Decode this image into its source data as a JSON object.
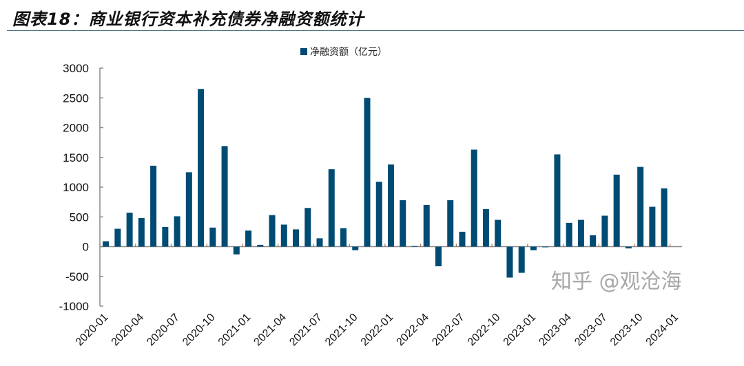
{
  "header": {
    "title": "图表18：商业银行资本补充债券净融资额统计"
  },
  "watermark": "知乎 @观沧海",
  "chart_data": {
    "type": "bar",
    "title": "",
    "xlabel": "",
    "ylabel": "",
    "ylim": [
      -1000,
      3000
    ],
    "yticks": [
      -1000,
      -500,
      0,
      500,
      1000,
      1500,
      2000,
      2500,
      3000
    ],
    "grid": false,
    "legend_position": "top-center",
    "bar_color": "#004b73",
    "categories": [
      "2020-01",
      "2020-02",
      "2020-03",
      "2020-04",
      "2020-05",
      "2020-06",
      "2020-07",
      "2020-08",
      "2020-09",
      "2020-10",
      "2020-11",
      "2020-12",
      "2021-01",
      "2021-02",
      "2021-03",
      "2021-04",
      "2021-05",
      "2021-06",
      "2021-07",
      "2021-08",
      "2021-09",
      "2021-10",
      "2021-11",
      "2021-12",
      "2022-01",
      "2022-02",
      "2022-03",
      "2022-04",
      "2022-05",
      "2022-06",
      "2022-07",
      "2022-08",
      "2022-09",
      "2022-10",
      "2022-11",
      "2022-12",
      "2023-01",
      "2023-02",
      "2023-03",
      "2023-04",
      "2023-05",
      "2023-06",
      "2023-07",
      "2023-08",
      "2023-09",
      "2023-10",
      "2023-11",
      "2023-12",
      "2024-01"
    ],
    "tick_labels": [
      "2020-01",
      "2020-04",
      "2020-07",
      "2020-10",
      "2021-01",
      "2021-04",
      "2021-07",
      "2021-10",
      "2022-01",
      "2022-04",
      "2022-07",
      "2022-10",
      "2023-01",
      "2023-04",
      "2023-07",
      "2023-10",
      "2024-01"
    ],
    "series": [
      {
        "name": "净融资额（亿元）",
        "values": [
          90,
          300,
          570,
          480,
          1360,
          330,
          510,
          1250,
          2650,
          320,
          1690,
          -130,
          270,
          30,
          530,
          370,
          290,
          650,
          140,
          1300,
          310,
          -60,
          2500,
          1090,
          1380,
          780,
          10,
          700,
          -330,
          780,
          250,
          1630,
          630,
          450,
          -520,
          -440,
          -60,
          -10,
          1550,
          400,
          450,
          190,
          520,
          1210,
          -30,
          1340,
          670,
          980,
          null
        ]
      }
    ]
  }
}
